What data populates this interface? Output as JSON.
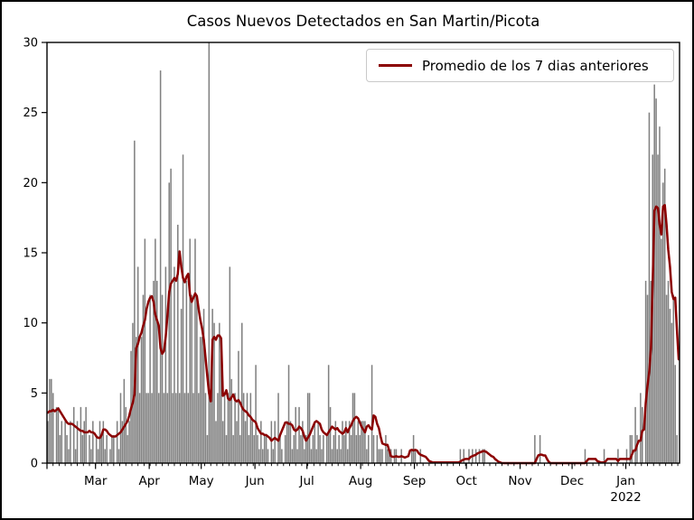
{
  "title": "Casos Nuevos Detectados en San Martin/Picota",
  "legend": {
    "label": "Promedio de los 7 dias anteriores"
  },
  "colors": {
    "background": "#ffffff",
    "bar": "#808080",
    "line": "#8b0000",
    "axis": "#000000",
    "legend_border": "#c9c9c9",
    "figure_border": "#000000"
  },
  "chart_data": {
    "type": "bar",
    "title": "Casos Nuevos Detectados en San Martin/Picota",
    "x_start": "2021-02-01",
    "x_end": "2022-01-31",
    "ylim": [
      0,
      30
    ],
    "y_ticks": [
      0,
      5,
      10,
      15,
      20,
      25,
      30
    ],
    "x_tick_labels": [
      "Mar",
      "Apr",
      "May",
      "Jun",
      "Jul",
      "Aug",
      "Sep",
      "Oct",
      "Nov",
      "Dec",
      "Jan"
    ],
    "x_tick_indices": [
      28,
      59,
      89,
      120,
      150,
      181,
      212,
      242,
      273,
      303,
      334
    ],
    "x_year_label": "2022",
    "grid": false,
    "legend_position": "upper right",
    "values": [
      3,
      6,
      6,
      5,
      0,
      4,
      4,
      2,
      3,
      0,
      3,
      2,
      1,
      3,
      0,
      4,
      1,
      3,
      0,
      4,
      2,
      3,
      4,
      0,
      2,
      1,
      3,
      0,
      2,
      1,
      3,
      2,
      3,
      1,
      2,
      0,
      1,
      2,
      2,
      0,
      3,
      1,
      5,
      3,
      6,
      4,
      2,
      3,
      8,
      10,
      23,
      9,
      14,
      5,
      9,
      12,
      16,
      5,
      5,
      12,
      5,
      13,
      16,
      13,
      5,
      28,
      12,
      5,
      14,
      5,
      20,
      21,
      5,
      14,
      5,
      17,
      5,
      11,
      22,
      5,
      13,
      5,
      16,
      12,
      5,
      16,
      12,
      5,
      9,
      9,
      11,
      5,
      2,
      30,
      5,
      11,
      10,
      3,
      5,
      10,
      8,
      3,
      5,
      2,
      5,
      14,
      6,
      2,
      5,
      3,
      8,
      2,
      10,
      5,
      3,
      5,
      2,
      5,
      3,
      2,
      7,
      2,
      1,
      3,
      1,
      2,
      2,
      1,
      0,
      3,
      1,
      3,
      0,
      5,
      2,
      1,
      0,
      2,
      3,
      7,
      3,
      1,
      2,
      4,
      1,
      4,
      2,
      3,
      1,
      2,
      5,
      5,
      1,
      2,
      3,
      1,
      3,
      2,
      1,
      2,
      0,
      2,
      7,
      4,
      1,
      2,
      3,
      1,
      2,
      1,
      3,
      2,
      3,
      1,
      3,
      2,
      5,
      5,
      2,
      3,
      2,
      3,
      3,
      3,
      1,
      2,
      0,
      7,
      2,
      0,
      2,
      1,
      1,
      1,
      0,
      2,
      1,
      1,
      1,
      0,
      1,
      1,
      0,
      0,
      1,
      0,
      0,
      0,
      0,
      0,
      1,
      2,
      1,
      0,
      0,
      1,
      0,
      0,
      0,
      0,
      0,
      0,
      0,
      0,
      0,
      0,
      0,
      0,
      0,
      0,
      0,
      0,
      0,
      0,
      0,
      0,
      0,
      0,
      1,
      0,
      1,
      0,
      0,
      1,
      0,
      1,
      0,
      1,
      0,
      1,
      0,
      1,
      1,
      0,
      0,
      0,
      0,
      0,
      0,
      0,
      0,
      0,
      0,
      0,
      0,
      0,
      0,
      0,
      0,
      0,
      0,
      0,
      0,
      0,
      0,
      0,
      0,
      0,
      0,
      0,
      0,
      2,
      0,
      0,
      2,
      0,
      0,
      0,
      0,
      0,
      0,
      0,
      0,
      0,
      0,
      0,
      0,
      0,
      0,
      0,
      0,
      0,
      0,
      0,
      0,
      0,
      0,
      0,
      0,
      0,
      1,
      0,
      0,
      0,
      0,
      0,
      0,
      0,
      0,
      0,
      0,
      1,
      0,
      0,
      0,
      0,
      0,
      0,
      0,
      1,
      0,
      0,
      0,
      0,
      1,
      0,
      2,
      2,
      0,
      4,
      2,
      0,
      5,
      4,
      0,
      13,
      12,
      25,
      13,
      22,
      27,
      26,
      22,
      24,
      16,
      20,
      21,
      12,
      13,
      11,
      10,
      12,
      7,
      2,
      0
    ],
    "overlay_line": {
      "label": "Promedio de los 7 dias anteriores",
      "color": "#8b0000",
      "values": [
        3.6,
        3.7,
        3.7,
        3.8,
        3.7,
        3.8,
        3.9,
        3.7,
        3.5,
        3.3,
        3.1,
        2.9,
        2.8,
        2.8,
        2.8,
        2.7,
        2.6,
        2.5,
        2.4,
        2.3,
        2.3,
        2.2,
        2.2,
        2.2,
        2.3,
        2.2,
        2.2,
        2.1,
        1.9,
        1.8,
        1.8,
        2.0,
        2.4,
        2.4,
        2.3,
        2.1,
        2.0,
        1.9,
        1.9,
        1.9,
        2.0,
        2.1,
        2.2,
        2.4,
        2.6,
        2.8,
        3.0,
        3.4,
        3.9,
        4.3,
        4.9,
        8.2,
        8.5,
        9.0,
        9.3,
        9.8,
        10.2,
        11.0,
        11.5,
        11.8,
        11.9,
        11.5,
        10.6,
        10.2,
        9.8,
        8.2,
        7.8,
        8.0,
        9.0,
        10.5,
        12.2,
        12.8,
        13.0,
        13.2,
        13.0,
        13.5,
        15.1,
        14.0,
        13.2,
        12.9,
        13.3,
        13.5,
        12.0,
        11.5,
        11.8,
        12.1,
        11.9,
        11.0,
        10.2,
        9.6,
        8.8,
        7.5,
        6.2,
        5.0,
        4.4,
        8.8,
        9.0,
        8.8,
        9.1,
        9.1,
        8.9,
        4.8,
        4.9,
        5.2,
        4.6,
        4.5,
        4.7,
        4.9,
        4.5,
        4.4,
        4.5,
        4.3,
        4.0,
        3.8,
        3.7,
        3.6,
        3.4,
        3.3,
        3.1,
        3.0,
        2.9,
        2.5,
        2.3,
        2.1,
        2.1,
        2.0,
        2.0,
        1.9,
        1.8,
        1.6,
        1.7,
        1.8,
        1.7,
        1.6,
        2.0,
        2.3,
        2.6,
        2.9,
        2.9,
        2.8,
        2.8,
        2.7,
        2.4,
        2.3,
        2.4,
        2.6,
        2.5,
        2.3,
        1.9,
        1.6,
        1.8,
        2.0,
        2.3,
        2.6,
        2.9,
        3.0,
        2.9,
        2.8,
        2.4,
        2.2,
        2.1,
        2.0,
        2.2,
        2.4,
        2.6,
        2.5,
        2.4,
        2.5,
        2.3,
        2.2,
        2.1,
        2.2,
        2.5,
        2.2,
        2.5,
        2.7,
        3.0,
        3.2,
        3.3,
        3.2,
        2.9,
        2.6,
        2.4,
        2.2,
        2.6,
        2.7,
        2.5,
        2.4,
        3.4,
        3.3,
        2.8,
        2.5,
        1.9,
        1.4,
        1.35,
        1.3,
        1.3,
        0.9,
        0.5,
        0.45,
        0.45,
        0.5,
        0.45,
        0.45,
        0.5,
        0.45,
        0.4,
        0.45,
        0.5,
        0.9,
        0.95,
        0.9,
        0.95,
        0.9,
        0.7,
        0.6,
        0.55,
        0.5,
        0.45,
        0.3,
        0.15,
        0.1,
        0.05,
        0.05,
        0.05,
        0.05,
        0.05,
        0.05,
        0.05,
        0.05,
        0.05,
        0.05,
        0.05,
        0.05,
        0.05,
        0.05,
        0.05,
        0.05,
        0.1,
        0.2,
        0.25,
        0.3,
        0.3,
        0.3,
        0.45,
        0.5,
        0.55,
        0.6,
        0.7,
        0.75,
        0.8,
        0.85,
        0.85,
        0.8,
        0.7,
        0.6,
        0.5,
        0.45,
        0.3,
        0.2,
        0.1,
        0.05,
        0,
        0,
        0,
        0,
        0,
        0,
        0,
        0,
        0,
        0,
        0,
        0,
        0,
        0,
        0,
        0,
        0,
        0,
        0,
        0,
        0.3,
        0.55,
        0.6,
        0.6,
        0.55,
        0.55,
        0.3,
        0.1,
        0,
        0,
        0,
        0,
        0,
        0,
        0,
        0,
        0,
        0,
        0,
        0,
        0,
        0,
        0,
        0,
        0,
        0,
        0,
        0,
        0,
        0.15,
        0.3,
        0.3,
        0.3,
        0.3,
        0.3,
        0.15,
        0.1,
        0.05,
        0.05,
        0.05,
        0.15,
        0.3,
        0.3,
        0.3,
        0.3,
        0.3,
        0.3,
        0.15,
        0.3,
        0.3,
        0.3,
        0.3,
        0.3,
        0.3,
        0.3,
        0.6,
        0.9,
        0.9,
        1.3,
        1.6,
        1.6,
        2.3,
        2.4,
        4.3,
        5.5,
        6.5,
        8.2,
        12.9,
        18.0,
        18.3,
        18.2,
        17.0,
        16.3,
        18.3,
        18.4,
        17.0,
        15.2,
        14.0,
        12.2,
        11.7,
        11.8,
        9.5,
        7.4
      ]
    }
  }
}
